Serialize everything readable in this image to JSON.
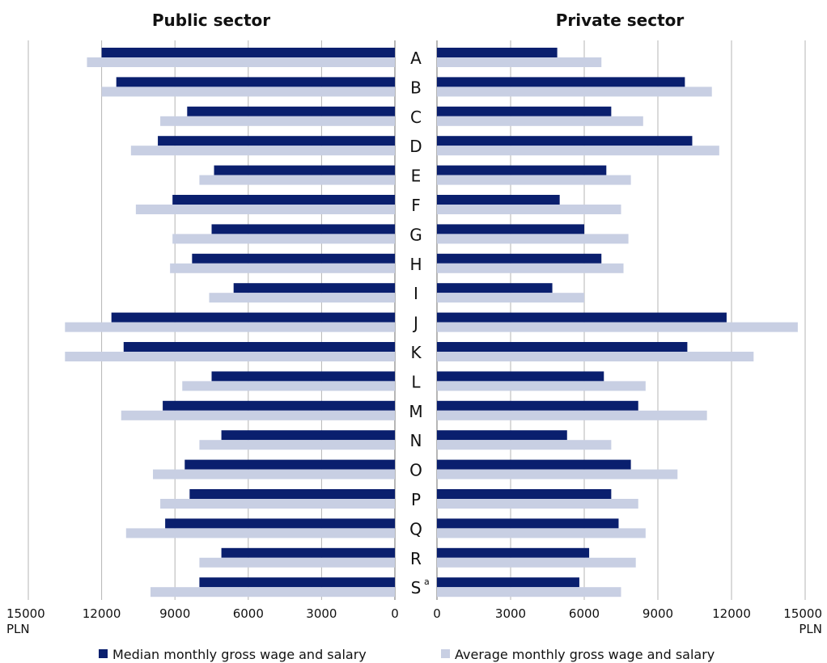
{
  "chart_data": {
    "type": "bar",
    "orientation": "horizontal-butterfly",
    "panels": [
      {
        "key": "public",
        "title": "Public sector"
      },
      {
        "key": "private",
        "title": "Private sector"
      }
    ],
    "categories": [
      "A",
      "B",
      "C",
      "D",
      "E",
      "F",
      "G",
      "H",
      "I",
      "J",
      "K",
      "L",
      "M",
      "N",
      "O",
      "P",
      "Q",
      "R",
      "S"
    ],
    "category_superscripts": {
      "S": "a"
    },
    "series": [
      {
        "name": "Median monthly gross wage and salary",
        "color": "#0a1f6e",
        "public": [
          12000,
          11400,
          8500,
          9700,
          7400,
          9100,
          7500,
          8300,
          6600,
          11600,
          11100,
          7500,
          9500,
          7100,
          8600,
          8400,
          9400,
          7100,
          8000
        ],
        "private": [
          4900,
          10100,
          7100,
          10400,
          6900,
          5000,
          6000,
          6700,
          4700,
          11800,
          10200,
          6800,
          8200,
          5300,
          7900,
          7100,
          7400,
          6200,
          5800
        ]
      },
      {
        "name": "Average monthly gross wage and salary",
        "color": "#c8cfe3",
        "public": [
          12600,
          12000,
          9600,
          10800,
          8000,
          10600,
          9100,
          9200,
          7600,
          13500,
          13500,
          8700,
          11200,
          8000,
          9900,
          9600,
          11000,
          8000,
          10000
        ],
        "private": [
          6700,
          11200,
          8400,
          11500,
          7900,
          7500,
          7800,
          7600,
          6000,
          14700,
          12900,
          8500,
          11000,
          7100,
          9800,
          8200,
          8500,
          8100,
          7500
        ]
      }
    ],
    "axis": {
      "ticks_public": [
        "15000",
        "12000",
        "9000",
        "6000",
        "3000",
        "0"
      ],
      "ticks_private": [
        "0",
        "3000",
        "6000",
        "9000",
        "12000",
        "15000"
      ],
      "tick_values": [
        0,
        3000,
        6000,
        9000,
        12000,
        15000
      ],
      "unit": "PLN",
      "xlim": [
        0,
        15000
      ],
      "grid": true
    },
    "legend_position": "bottom"
  }
}
